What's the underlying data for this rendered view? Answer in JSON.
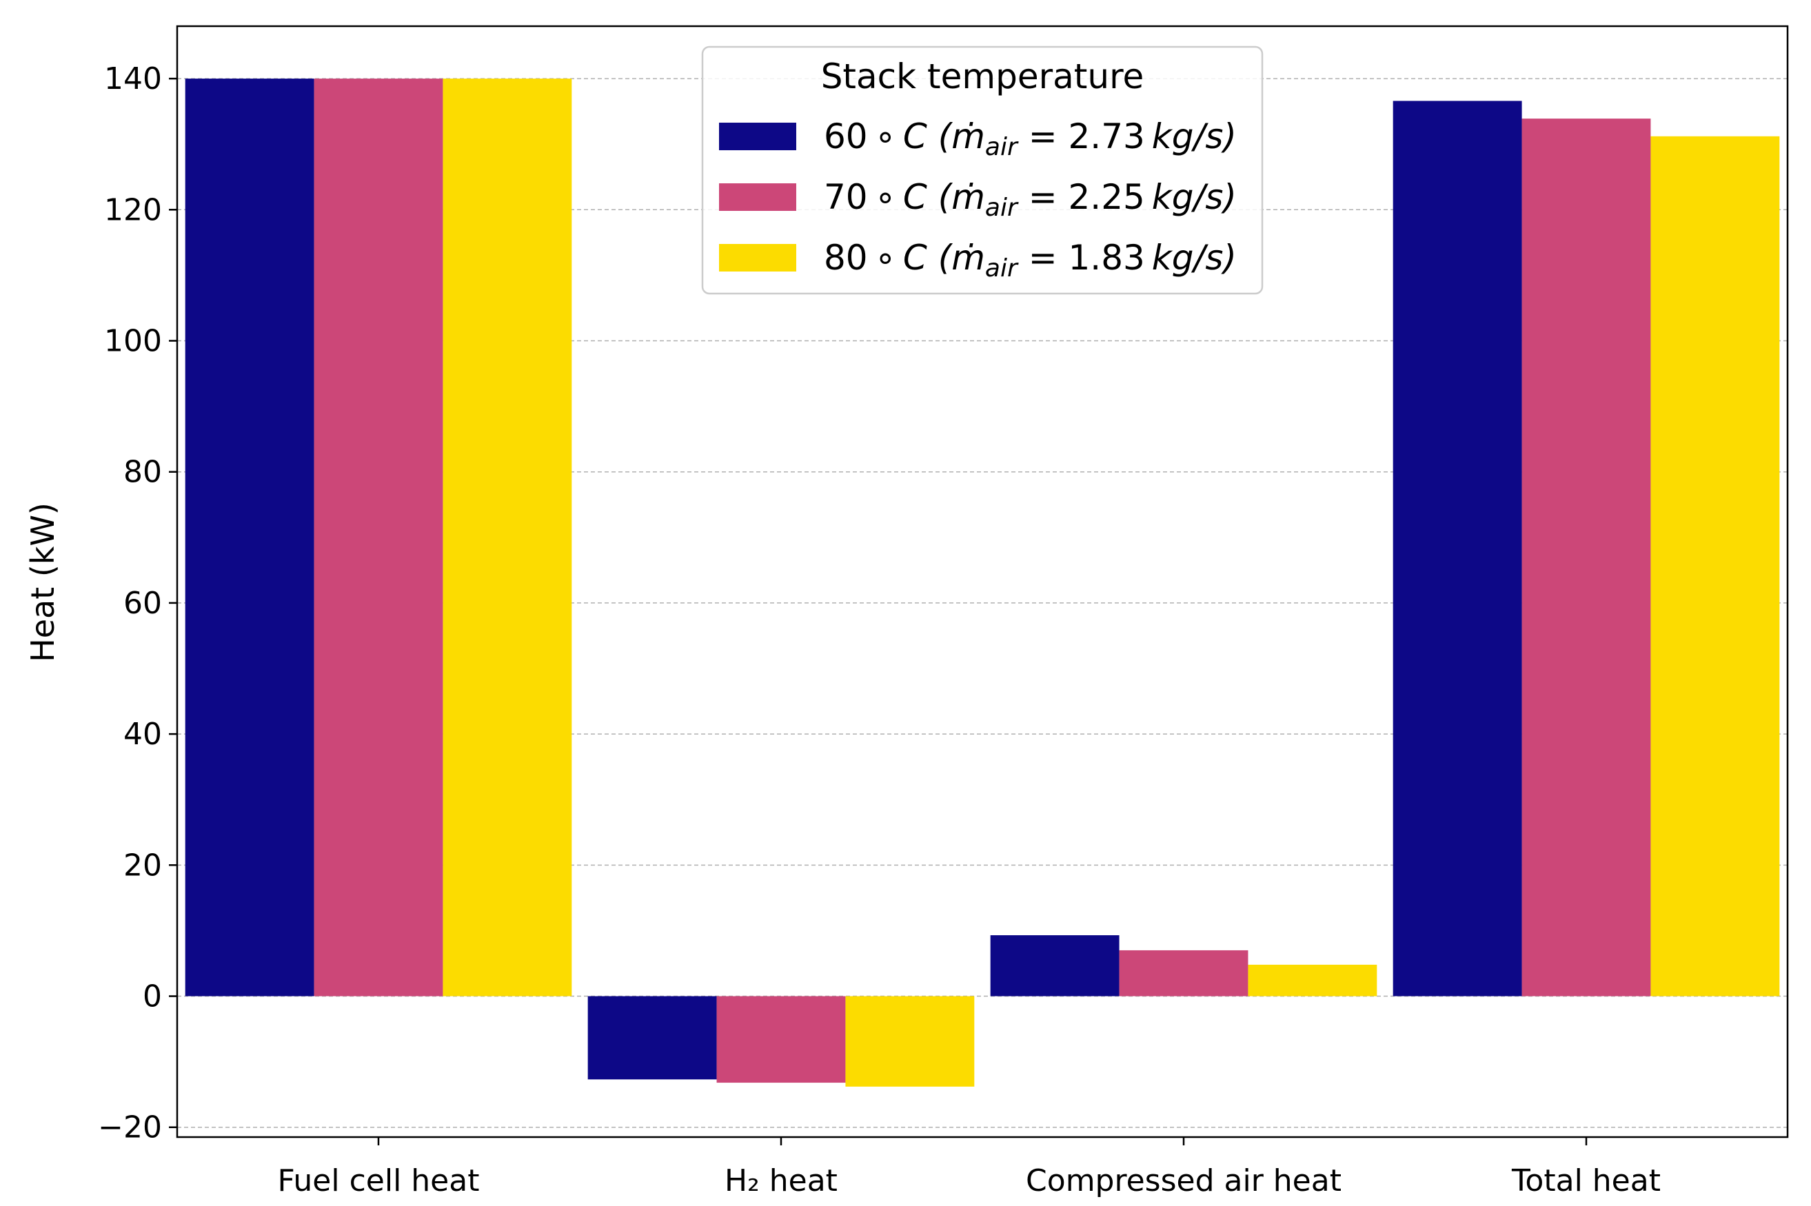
{
  "chart_data": {
    "type": "bar",
    "title": "",
    "xlabel": "",
    "ylabel": "Heat (kW)",
    "ylim": [
      -21.5,
      148
    ],
    "yticks": [
      -20,
      0,
      20,
      40,
      60,
      80,
      100,
      120,
      140
    ],
    "ytick_labels": [
      "−20",
      "0",
      "20",
      "40",
      "60",
      "80",
      "100",
      "120",
      "140"
    ],
    "grid": "horizontal-dashed",
    "categories": [
      "Fuel cell heat",
      "H₂ heat",
      "Compressed air heat",
      "Total heat"
    ],
    "legend": {
      "title": "Stack temperature",
      "placement": "top-center"
    },
    "series": [
      {
        "name": "60∘C (ṁair = 2.73 kg/s)",
        "temp": "60",
        "flow": "2.73",
        "color": "#0d0887",
        "values": [
          140,
          -12.7,
          9.3,
          136.6
        ]
      },
      {
        "name": "70∘C (ṁair = 2.25 kg/s)",
        "temp": "70",
        "flow": "2.25",
        "color": "#cc4778",
        "values": [
          140,
          -13.2,
          7.0,
          133.9
        ]
      },
      {
        "name": "80∘C (ṁair = 1.83 kg/s)",
        "temp": "80",
        "flow": "1.83",
        "color": "#fcdc00",
        "values": [
          140,
          -13.8,
          4.8,
          131.2
        ]
      }
    ]
  }
}
